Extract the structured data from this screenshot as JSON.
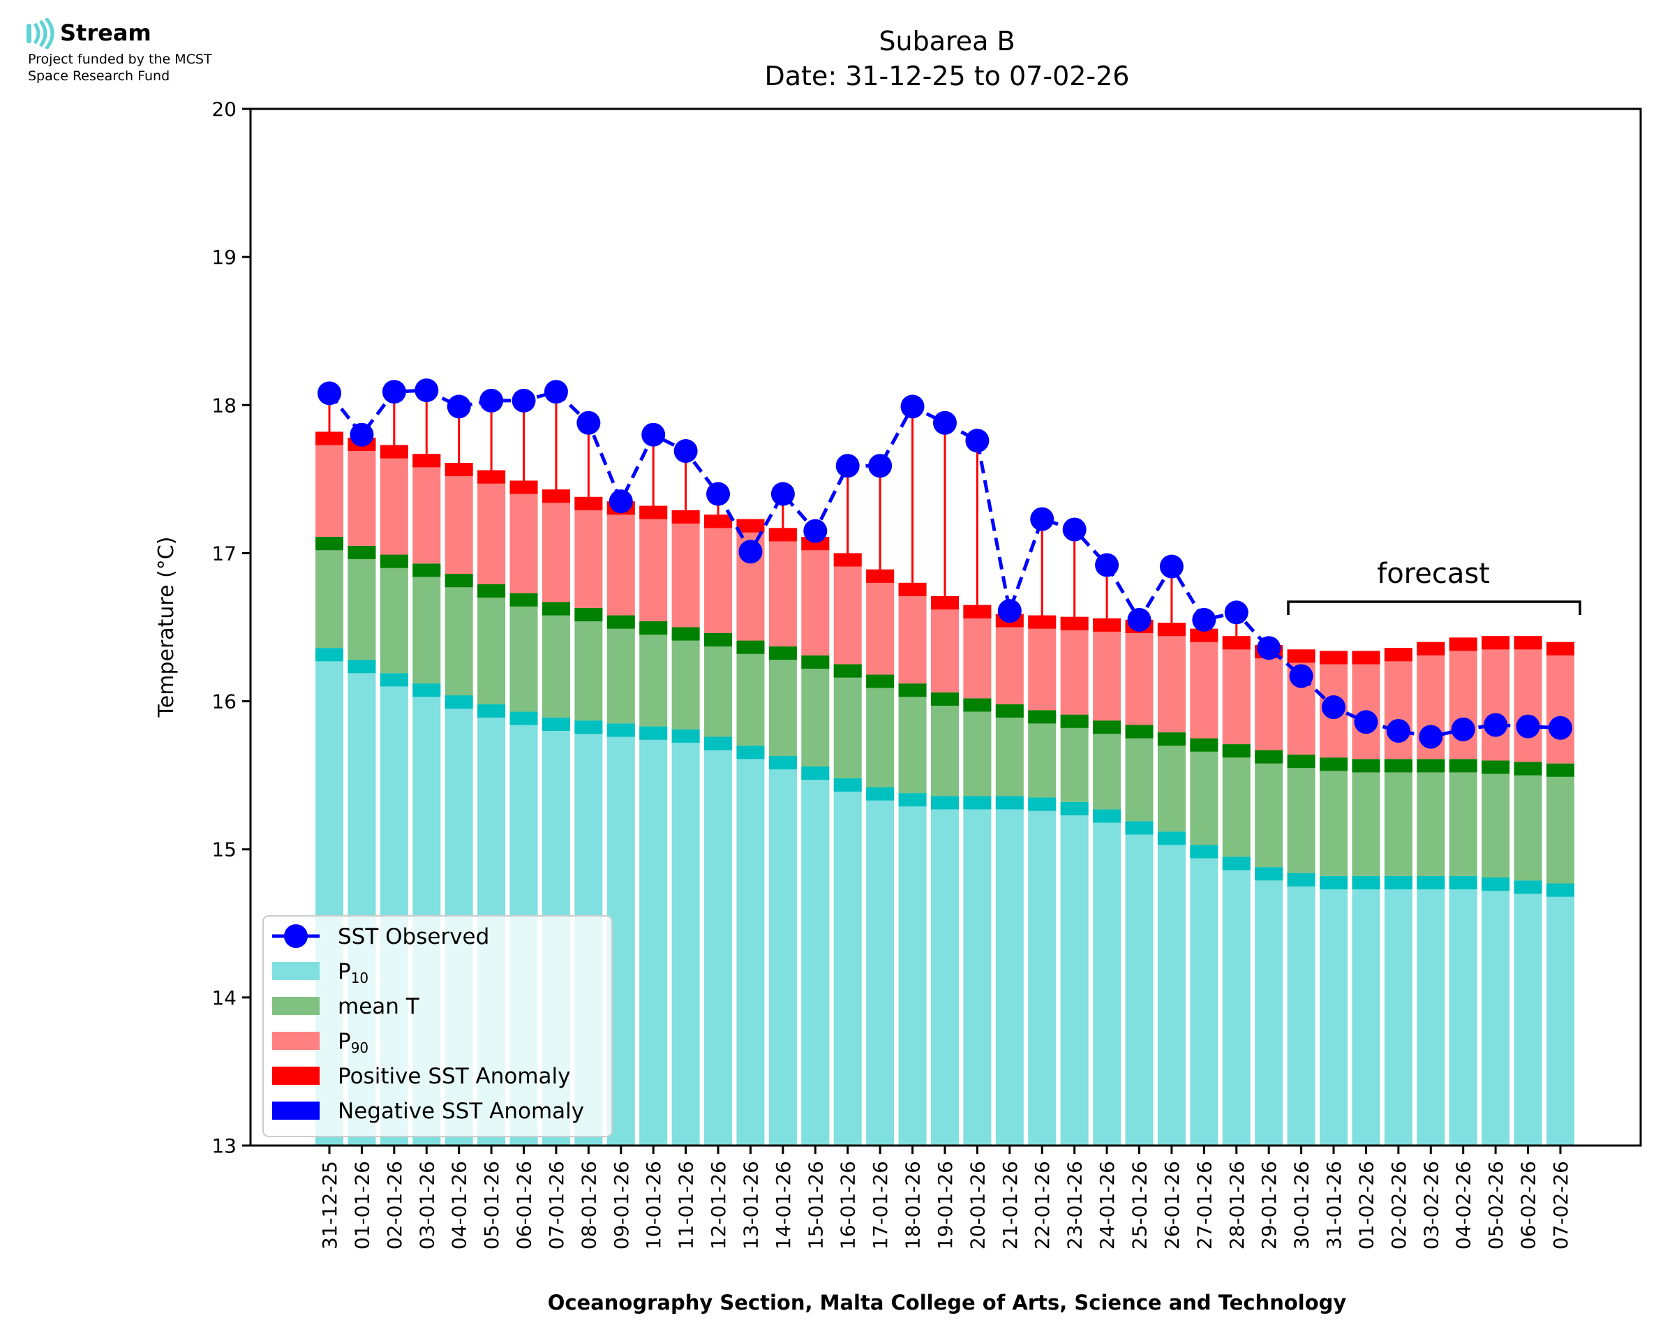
{
  "logo": {
    "brand": "Stream",
    "line1": "Project funded by the MCST",
    "line2": "Space Research Fund"
  },
  "chart_data": {
    "type": "bar",
    "title": "Subarea B",
    "subtitle": "Date: 31-12-25 to 07-02-26",
    "xlabel": "Oceanography Section, Malta College of Arts, Science and Technology",
    "ylabel": "Temperature (°C)",
    "ylim": [
      13,
      20
    ],
    "yticks": [
      13,
      14,
      15,
      16,
      17,
      18,
      19,
      20
    ],
    "grid": false,
    "legend_position": "lower-left",
    "annotation": "forecast",
    "forecast_range": [
      "30-01-26",
      "07-02-26"
    ],
    "categories": [
      "31-12-25",
      "01-01-26",
      "02-01-26",
      "03-01-26",
      "04-01-26",
      "05-01-26",
      "06-01-26",
      "07-01-26",
      "08-01-26",
      "09-01-26",
      "10-01-26",
      "11-01-26",
      "12-01-26",
      "13-01-26",
      "14-01-26",
      "15-01-26",
      "16-01-26",
      "17-01-26",
      "18-01-26",
      "19-01-26",
      "20-01-26",
      "21-01-26",
      "22-01-26",
      "23-01-26",
      "24-01-26",
      "25-01-26",
      "26-01-26",
      "27-01-26",
      "28-01-26",
      "29-01-26",
      "30-01-26",
      "31-01-26",
      "01-02-26",
      "02-02-26",
      "03-02-26",
      "04-02-26",
      "05-02-26",
      "06-02-26",
      "07-02-26"
    ],
    "series": [
      {
        "name": "SST Observed",
        "color": "#0000ff",
        "values": [
          18.08,
          17.8,
          18.09,
          18.1,
          17.99,
          18.03,
          18.03,
          18.09,
          17.88,
          17.35,
          17.8,
          17.69,
          17.4,
          17.01,
          17.4,
          17.15,
          17.59,
          17.59,
          17.99,
          17.88,
          17.76,
          16.61,
          17.23,
          17.16,
          16.92,
          16.55,
          16.91,
          16.55,
          16.6,
          16.36,
          16.17,
          15.96,
          15.86,
          15.8,
          15.76,
          15.81,
          15.84,
          15.83,
          15.82
        ]
      },
      {
        "name": "P10",
        "color": "#80dfdf",
        "values": [
          16.36,
          16.28,
          16.19,
          16.12,
          16.04,
          15.98,
          15.93,
          15.89,
          15.87,
          15.85,
          15.83,
          15.81,
          15.76,
          15.7,
          15.63,
          15.56,
          15.48,
          15.42,
          15.38,
          15.36,
          15.36,
          15.36,
          15.35,
          15.32,
          15.27,
          15.19,
          15.12,
          15.03,
          14.95,
          14.88,
          14.84,
          14.82,
          14.82,
          14.82,
          14.82,
          14.82,
          14.81,
          14.79,
          14.77
        ]
      },
      {
        "name": "mean T",
        "color": "#80c080",
        "values": [
          17.11,
          17.05,
          16.99,
          16.93,
          16.86,
          16.79,
          16.73,
          16.67,
          16.63,
          16.58,
          16.54,
          16.5,
          16.46,
          16.41,
          16.37,
          16.31,
          16.25,
          16.18,
          16.12,
          16.06,
          16.02,
          15.98,
          15.94,
          15.91,
          15.87,
          15.84,
          15.79,
          15.75,
          15.71,
          15.67,
          15.64,
          15.62,
          15.61,
          15.61,
          15.61,
          15.61,
          15.6,
          15.59,
          15.58
        ]
      },
      {
        "name": "P90",
        "color": "#ff8080",
        "values": [
          17.82,
          17.78,
          17.73,
          17.67,
          17.61,
          17.56,
          17.49,
          17.43,
          17.38,
          17.35,
          17.32,
          17.29,
          17.26,
          17.23,
          17.17,
          17.11,
          17.0,
          16.89,
          16.8,
          16.71,
          16.65,
          16.59,
          16.58,
          16.57,
          16.56,
          16.55,
          16.53,
          16.49,
          16.44,
          16.38,
          16.35,
          16.34,
          16.34,
          16.36,
          16.4,
          16.43,
          16.44,
          16.44,
          16.4
        ]
      }
    ],
    "legend": [
      {
        "label": "SST Observed",
        "kind": "line",
        "color": "#0000ff"
      },
      {
        "label": "P",
        "sub": "10",
        "kind": "patch",
        "color": "#80dfdf"
      },
      {
        "label": "mean T",
        "kind": "patch",
        "color": "#80c080"
      },
      {
        "label": "P",
        "sub": "90",
        "kind": "patch",
        "color": "#ff8080"
      },
      {
        "label": "Positive SST Anomaly",
        "kind": "patch",
        "color": "#ff0000"
      },
      {
        "label": "Negative SST Anomaly",
        "kind": "patch",
        "color": "#0000ff"
      }
    ],
    "colors": {
      "p10_cap": "#00c0c0",
      "mean_cap": "#008000",
      "p90_cap": "#ff0000",
      "positive_anomaly": "#ff0000",
      "negative_anomaly": "#0000ff"
    }
  }
}
